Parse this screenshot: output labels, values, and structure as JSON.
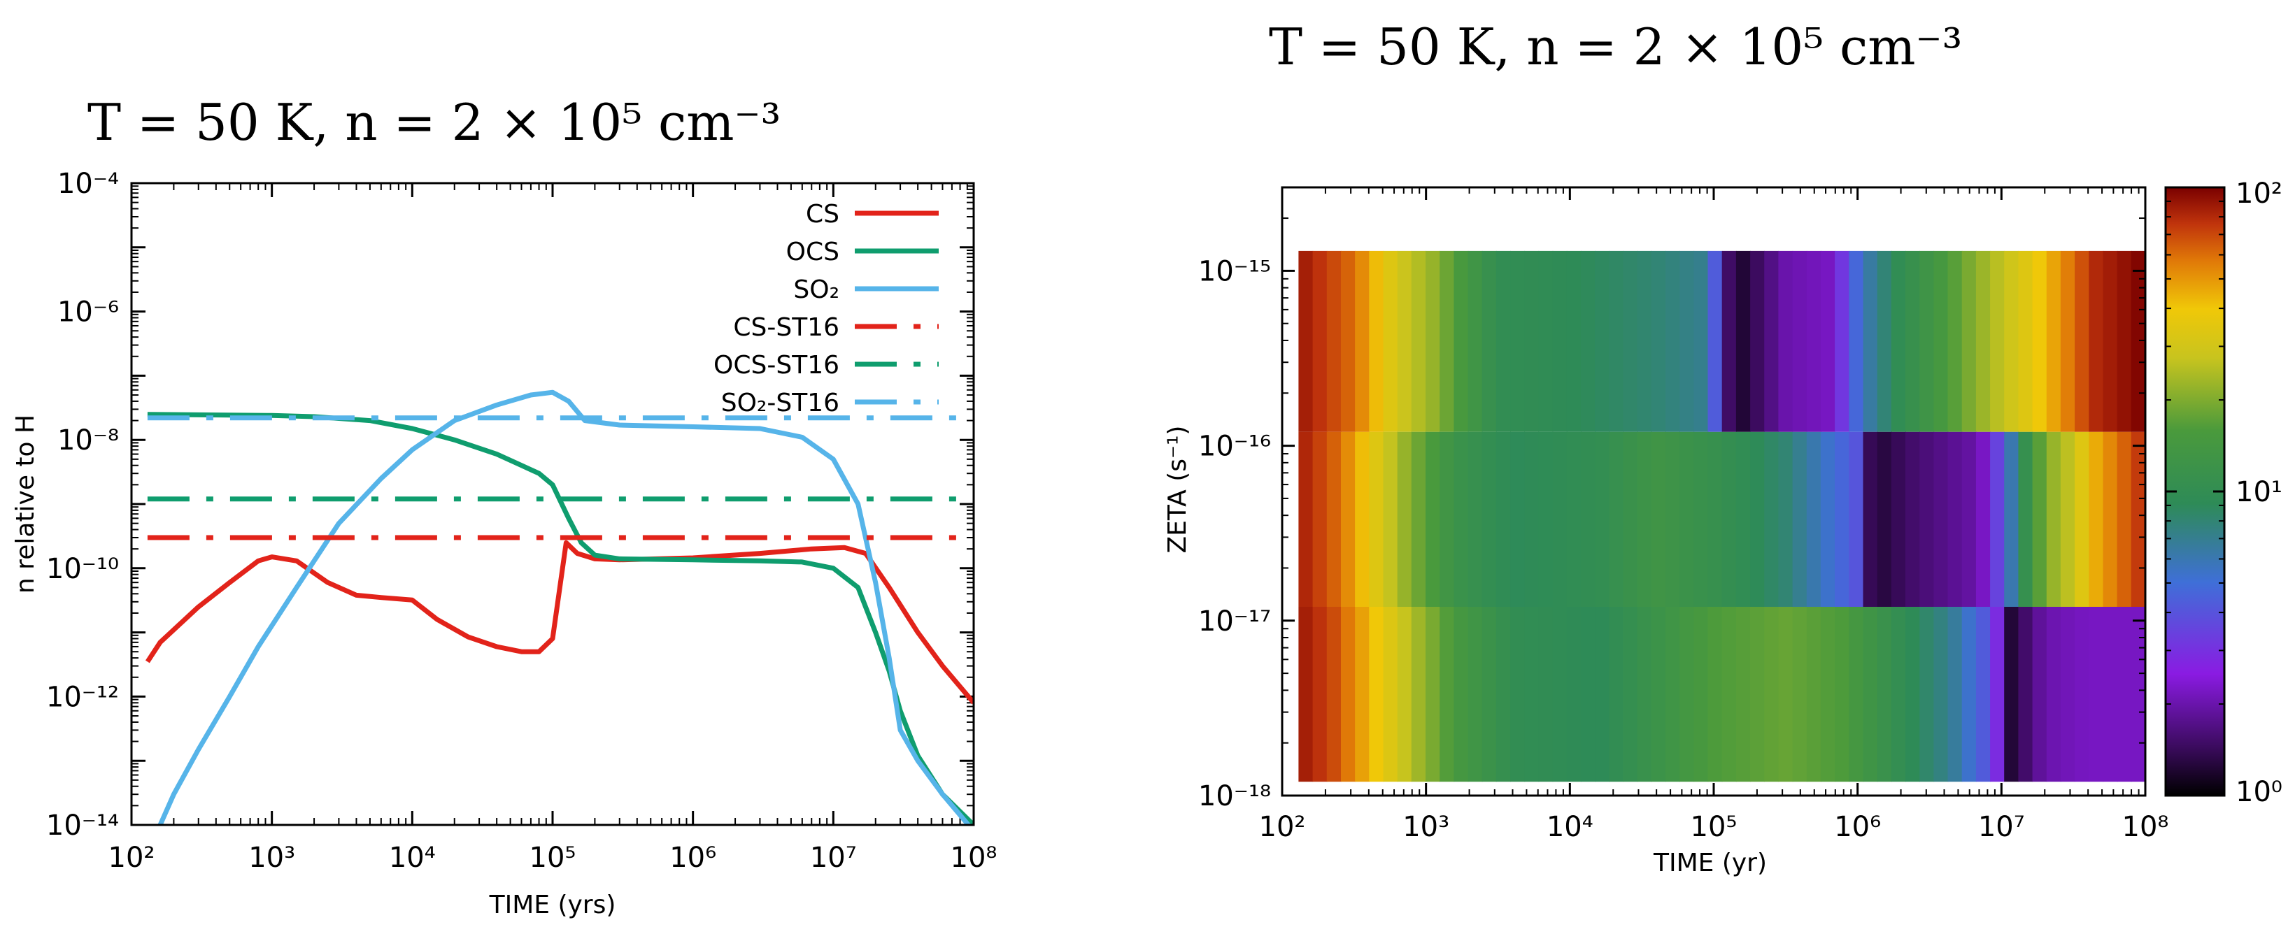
{
  "chart_data": [
    {
      "type": "line",
      "title": "T = 50 K, n = 2 × 10⁵ cm⁻³",
      "xlabel": "TIME (yrs)",
      "ylabel": "n relative to H",
      "xscale": "log",
      "yscale": "log",
      "xlim": [
        100,
        100000000
      ],
      "ylim": [
        1e-14,
        0.0001
      ],
      "xticks": [
        "10²",
        "10³",
        "10⁴",
        "10⁵",
        "10⁶",
        "10⁷",
        "10⁸"
      ],
      "yticks": [
        "10⁻¹⁴",
        "10⁻¹²",
        "10⁻¹⁰",
        "10⁻⁸",
        "10⁻⁶",
        "10⁻⁴"
      ],
      "grid": false,
      "legend_position": "top-right",
      "series": [
        {
          "name": "CS",
          "style": "solid",
          "color": "#e2231a",
          "x": [
            130,
            160,
            200,
            300,
            500,
            800,
            1000,
            1500,
            2500,
            4000,
            6000,
            10000,
            15000,
            25000,
            40000,
            60000,
            80000,
            100000,
            125000,
            150000,
            200000,
            300000,
            1000000,
            3000000,
            7000000,
            12000000,
            17000000,
            25000000,
            40000000,
            60000000,
            100000000
          ],
          "y": [
            3.5e-12,
            7e-12,
            1.1e-11,
            2.5e-11,
            6e-11,
            1.3e-10,
            1.5e-10,
            1.3e-10,
            6e-11,
            3.8e-11,
            3.5e-11,
            3.2e-11,
            1.6e-11,
            8.5e-12,
            6e-12,
            5e-12,
            5e-12,
            8e-12,
            2.5e-10,
            1.7e-10,
            1.4e-10,
            1.35e-10,
            1.45e-10,
            1.7e-10,
            2e-10,
            2.1e-10,
            1.7e-10,
            5e-11,
            1e-11,
            3e-12,
            8e-13
          ]
        },
        {
          "name": "OCS",
          "style": "solid",
          "color": "#0f9d6e",
          "x": [
            130,
            1000,
            2000,
            5000,
            10000,
            20000,
            40000,
            60000,
            80000,
            100000,
            130000,
            160000,
            200000,
            300000,
            1000000,
            3000000,
            6000000,
            10000000,
            15000000,
            20000000,
            25000000,
            30000000,
            40000000,
            60000000,
            100000000
          ],
          "y": [
            2.5e-08,
            2.4e-08,
            2.3e-08,
            2e-08,
            1.5e-08,
            1e-08,
            6e-09,
            4e-09,
            3e-09,
            2e-09,
            6e-10,
            2.5e-10,
            1.6e-10,
            1.4e-10,
            1.35e-10,
            1.3e-10,
            1.25e-10,
            1e-10,
            5e-11,
            1e-11,
            2.5e-12,
            6e-13,
            1.2e-13,
            3e-14,
            1e-14
          ]
        },
        {
          "name": "SO₂",
          "style": "solid",
          "color": "#56b4e9",
          "x": [
            160,
            200,
            300,
            500,
            800,
            1500,
            3000,
            6000,
            10000,
            20000,
            40000,
            70000,
            100000,
            130000,
            170000,
            300000,
            1000000,
            3000000,
            6000000,
            10000000,
            15000000,
            20000000,
            25000000,
            30000000,
            40000000,
            60000000,
            100000000
          ],
          "y": [
            1e-14,
            3e-14,
            1.5e-13,
            1e-12,
            6e-12,
            5e-11,
            5e-10,
            2.5e-09,
            7e-09,
            2e-08,
            3.5e-08,
            5e-08,
            5.5e-08,
            4e-08,
            2e-08,
            1.7e-08,
            1.6e-08,
            1.5e-08,
            1.1e-08,
            5e-09,
            1e-09,
            6e-11,
            4e-12,
            3e-13,
            1e-13,
            3e-14,
            8e-15
          ]
        },
        {
          "name": "CS-ST16",
          "style": "dash-dot",
          "color": "#e2231a",
          "x": [
            130,
            100000000
          ],
          "y": [
            3e-10,
            3e-10
          ]
        },
        {
          "name": "OCS-ST16",
          "style": "dash-dot",
          "color": "#0f9d6e",
          "x": [
            130,
            100000000
          ],
          "y": [
            1.2e-09,
            1.2e-09
          ]
        },
        {
          "name": "SO₂-ST16",
          "style": "dash-dot",
          "color": "#56b4e9",
          "x": [
            130,
            100000000
          ],
          "y": [
            2.2e-08,
            2.2e-08
          ]
        }
      ]
    },
    {
      "type": "heatmap",
      "title": "T = 50 K, n = 2 × 10⁵ cm⁻³",
      "xlabel": "TIME (yr)",
      "ylabel": "ZETA (s⁻¹)",
      "xscale": "log",
      "yscale": "log",
      "xlim": [
        100,
        100000000
      ],
      "ylim": [
        1e-18,
        3e-15
      ],
      "xticks": [
        "10²",
        "10³",
        "10⁴",
        "10⁵",
        "10⁶",
        "10⁷",
        "10⁸"
      ],
      "yticks": [
        "10⁻¹⁸",
        "10⁻¹⁷",
        "10⁻¹⁶",
        "10⁻¹⁵"
      ],
      "colorbar": {
        "scale": "log",
        "range": [
          1,
          100
        ],
        "ticks": [
          "10⁰",
          "10¹",
          "10²"
        ]
      },
      "rows": [
        {
          "zeta_range": [
            1.2e-16,
            1.3e-15
          ],
          "segments": [
            [
              2,
              100
            ],
            [
              2.5,
              60
            ],
            [
              2.8,
              30
            ],
            [
              3.05,
              22
            ],
            [
              3.25,
              15
            ],
            [
              3.5,
              10
            ],
            [
              4.1,
              9
            ],
            [
              4.6,
              8
            ],
            [
              4.95,
              7
            ],
            [
              5.05,
              3
            ],
            [
              5.13,
              1.1
            ],
            [
              5.5,
              2
            ],
            [
              5.8,
              2.2
            ],
            [
              5.95,
              4
            ],
            [
              6.05,
              6
            ],
            [
              6.3,
              10
            ],
            [
              6.6,
              15
            ],
            [
              6.85,
              22
            ],
            [
              7.2,
              35
            ],
            [
              7.45,
              55
            ],
            [
              7.65,
              80
            ],
            [
              8.0,
              100
            ]
          ]
        },
        {
          "zeta_range": [
            1.2e-17,
            1.2e-16
          ],
          "segments": [
            [
              2,
              100
            ],
            [
              2.4,
              60
            ],
            [
              2.7,
              30
            ],
            [
              2.9,
              20
            ],
            [
              3.2,
              12
            ],
            [
              3.6,
              9
            ],
            [
              4.2,
              10
            ],
            [
              4.6,
              13
            ],
            [
              5.0,
              11
            ],
            [
              5.5,
              8
            ],
            [
              6.0,
              4
            ],
            [
              6.1,
              1.2
            ],
            [
              6.35,
              1.5
            ],
            [
              6.85,
              2
            ],
            [
              7.0,
              4
            ],
            [
              7.15,
              10
            ],
            [
              7.3,
              20
            ],
            [
              7.5,
              28
            ],
            [
              7.65,
              45
            ],
            [
              8.0,
              80
            ]
          ]
        },
        {
          "zeta_range": [
            1.2e-18,
            1.2e-17
          ],
          "segments": [
            [
              2,
              100
            ],
            [
              2.35,
              70
            ],
            [
              2.65,
              40
            ],
            [
              2.9,
              25
            ],
            [
              3.2,
              15
            ],
            [
              3.6,
              10
            ],
            [
              4.2,
              9
            ],
            [
              4.6,
              12
            ],
            [
              5.0,
              16
            ],
            [
              5.5,
              18
            ],
            [
              5.9,
              16
            ],
            [
              6.3,
              10
            ],
            [
              6.65,
              7
            ],
            [
              6.9,
              4
            ],
            [
              7.0,
              2.5
            ],
            [
              7.05,
              1.2
            ],
            [
              7.3,
              2
            ],
            [
              7.6,
              2.2
            ],
            [
              8.0,
              2.2
            ]
          ]
        }
      ]
    }
  ]
}
